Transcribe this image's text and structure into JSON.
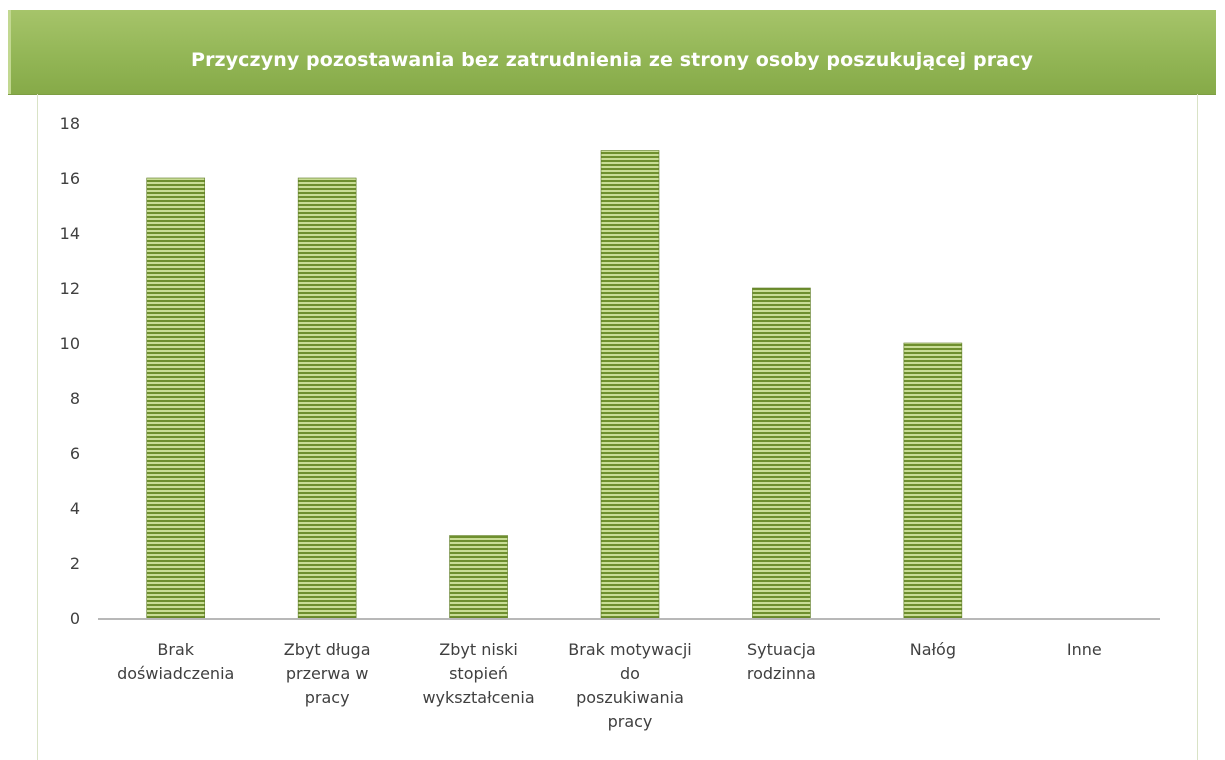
{
  "chart_data": {
    "type": "bar",
    "title": "Przyczyny pozostawania bez zatrudnienia  ze strony osoby poszukującej pracy",
    "categories": [
      [
        "Brak",
        "doświadczenia"
      ],
      [
        "Zbyt długa",
        "przerwa w",
        "pracy"
      ],
      [
        "Zbyt niski",
        "stopień",
        "wykształcenia"
      ],
      [
        "Brak motywacji",
        "do",
        "poszukiwania",
        "pracy"
      ],
      [
        "Sytuacja",
        "rodzinna"
      ],
      [
        "Nałóg"
      ],
      [
        "Inne"
      ]
    ],
    "values": [
      16,
      16,
      3,
      17,
      12,
      10,
      0
    ],
    "ylim": [
      0,
      18
    ],
    "yticks": [
      0,
      2,
      4,
      6,
      8,
      10,
      12,
      14,
      16,
      18
    ],
    "xlabel": "",
    "ylabel": "",
    "grid": false,
    "legend": "none",
    "colors": {
      "bar_dark": "#6e8f2e",
      "bar_light": "#c9dd96",
      "bar_edge": "#5d7a25",
      "axis": "#b8b8b8",
      "banner": "#93b656"
    }
  }
}
